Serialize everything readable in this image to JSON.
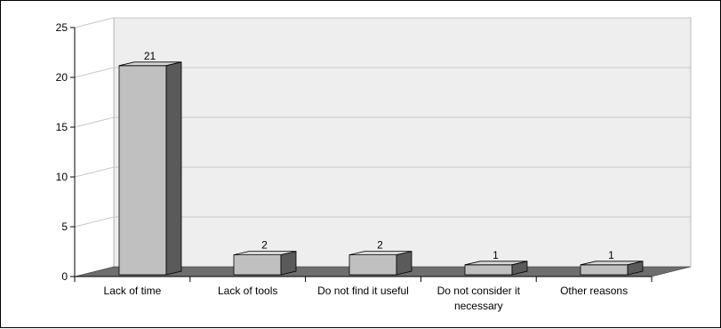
{
  "chart_data": {
    "type": "bar",
    "title": "",
    "xlabel": "",
    "ylabel": "",
    "three_d": true,
    "grid": true,
    "legend": "none",
    "ylim": [
      0,
      25
    ],
    "yticks": [
      0,
      5,
      10,
      15,
      20,
      25
    ],
    "ytick_labels": [
      "0",
      "5",
      "10",
      "15",
      "20",
      "25"
    ],
    "categories": [
      [
        "Lack of time"
      ],
      [
        "Lack of tools"
      ],
      [
        "Do not find it useful"
      ],
      [
        "Do not consider it",
        "necessary"
      ],
      [
        "Other reasons"
      ]
    ],
    "values": [
      21,
      2,
      2,
      1,
      1
    ],
    "data_labels": [
      "21",
      "2",
      "2",
      "1",
      "1"
    ],
    "colors": {
      "bar_front": "#c0c0c0",
      "bar_top": "#d6d6d6",
      "bar_side": "#5a5a5a",
      "floor": "#6e6e6e",
      "back_wall": "#eeeeee",
      "side_wall": "#ffffff",
      "grid": "#c8c8c8",
      "axis": "#000000"
    }
  }
}
